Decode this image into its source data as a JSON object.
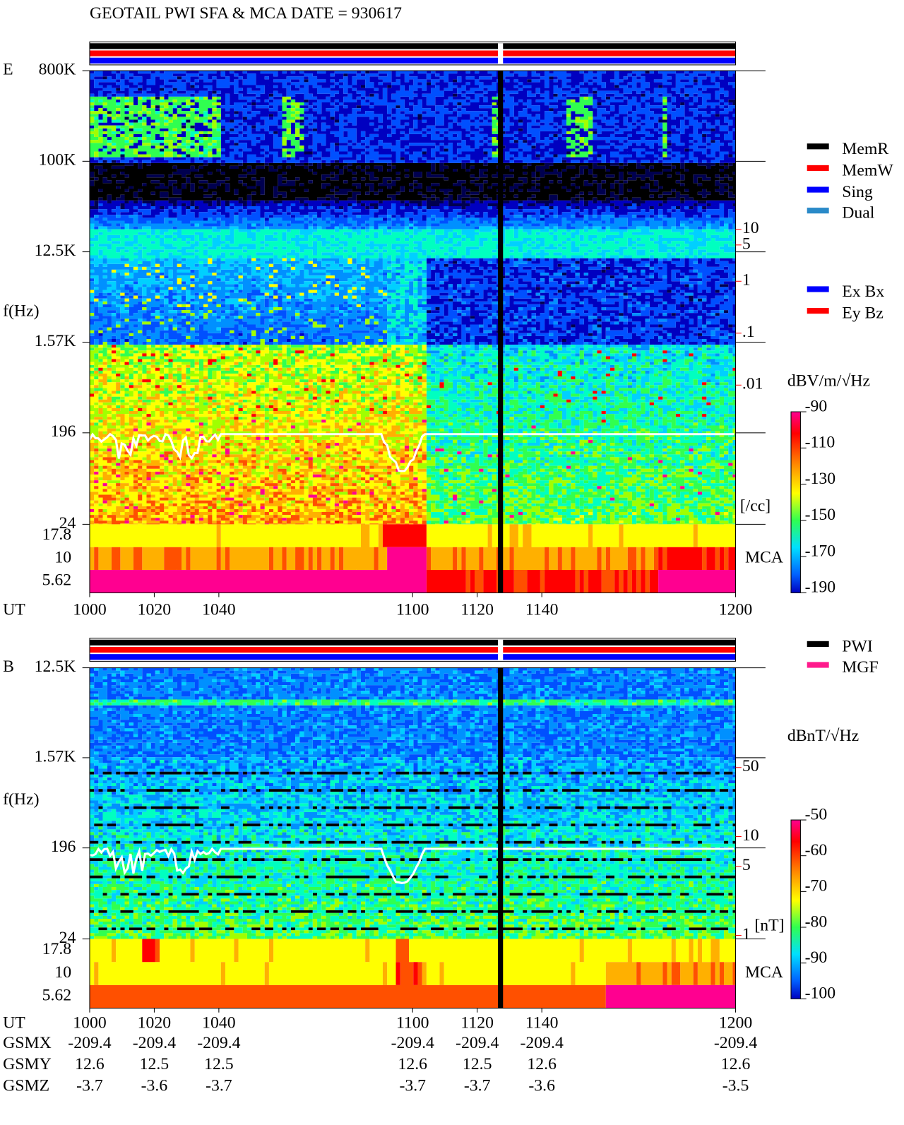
{
  "title": "GEOTAIL  PWI SFA & MCA   DATE = 930617",
  "chart_data": [
    {
      "type": "spectrogram",
      "panel_label": "E",
      "y_label": "f(Hz)",
      "x_label": "UT",
      "xlim": [
        1000,
        1200
      ],
      "xticks": [
        1000,
        1020,
        1040,
        1100,
        1120,
        1140,
        1200
      ],
      "log_y": true,
      "ylim": [
        24,
        800000
      ],
      "yticks": [
        {
          "value": 800000,
          "label": "800K"
        },
        {
          "value": 100000,
          "label": "100K"
        },
        {
          "value": 12500,
          "label": "12.5K"
        },
        {
          "value": 1570,
          "label": "1.57K"
        },
        196,
        24
      ],
      "mca_label": "MCA",
      "mca_ylim": [
        4.22,
        23.7
      ],
      "mca_yticks": [
        17.8,
        10,
        5.62
      ],
      "y2_label": "[/cc]",
      "y2lim": [
        0.001,
        100
      ],
      "y2_color": "#ff0000",
      "y2ticks": [
        10,
        5,
        1,
        {
          "value": 0.1,
          "label": ".1"
        },
        {
          "value": 0.01,
          "label": ".01"
        }
      ],
      "colorbar_label": "dBV/m/√Hz",
      "clim": [
        -190,
        -90
      ],
      "cticks": [
        -90,
        -110,
        -130,
        -150,
        -170,
        -190
      ],
      "legend": [
        {
          "name": "MemR",
          "color": "#000000"
        },
        {
          "name": "MemW",
          "color": "#ff0000"
        },
        {
          "name": "Sing",
          "color": "#0000ff"
        },
        {
          "name": "Dual",
          "color": "#2a8ac8"
        }
      ],
      "legend2": [
        {
          "name": "Ex Bx",
          "color": "#0000ff"
        },
        {
          "name": "Ey Bz",
          "color": "#ff0000"
        }
      ]
    },
    {
      "type": "spectrogram",
      "panel_label": "B",
      "y_label": "f(Hz)",
      "x_label": "UT",
      "xlim": [
        1000,
        1200
      ],
      "xticks": [
        1000,
        1020,
        1040,
        1100,
        1120,
        1140,
        1200
      ],
      "log_y": true,
      "ylim": [
        24,
        12500
      ],
      "yticks": [
        {
          "value": 12500,
          "label": "12.5K"
        },
        {
          "value": 1570,
          "label": "1.57K"
        },
        196,
        24
      ],
      "mca_label": "MCA",
      "mca_ylim": [
        4.22,
        23.7
      ],
      "mca_yticks": [
        17.8,
        10,
        5.62
      ],
      "y2_label": "[nT]",
      "y2lim": [
        1,
        100
      ],
      "y2_color": "#ff0000",
      "y2ticks": [
        50,
        10,
        5,
        1
      ],
      "colorbar_label": "dBnT/√Hz",
      "clim": [
        -100,
        -50
      ],
      "cticks": [
        -50,
        -60,
        -70,
        -80,
        -90,
        -100
      ],
      "legend": [
        {
          "name": "PWI",
          "color": "#000000"
        },
        {
          "name": "MGF",
          "color": "#ff1a8c"
        }
      ]
    }
  ],
  "orbit": {
    "rows": [
      {
        "label": "GSMX",
        "values": [
          -209.4,
          -209.4,
          -209.4,
          -209.4,
          -209.4,
          -209.4,
          -209.4
        ]
      },
      {
        "label": "GSMY",
        "values": [
          12.6,
          12.5,
          12.5,
          12.6,
          12.5,
          12.6,
          12.6
        ]
      },
      {
        "label": "GSMZ",
        "values": [
          -3.7,
          -3.6,
          -3.7,
          -3.7,
          -3.7,
          -3.6,
          -3.5
        ]
      }
    ]
  }
}
